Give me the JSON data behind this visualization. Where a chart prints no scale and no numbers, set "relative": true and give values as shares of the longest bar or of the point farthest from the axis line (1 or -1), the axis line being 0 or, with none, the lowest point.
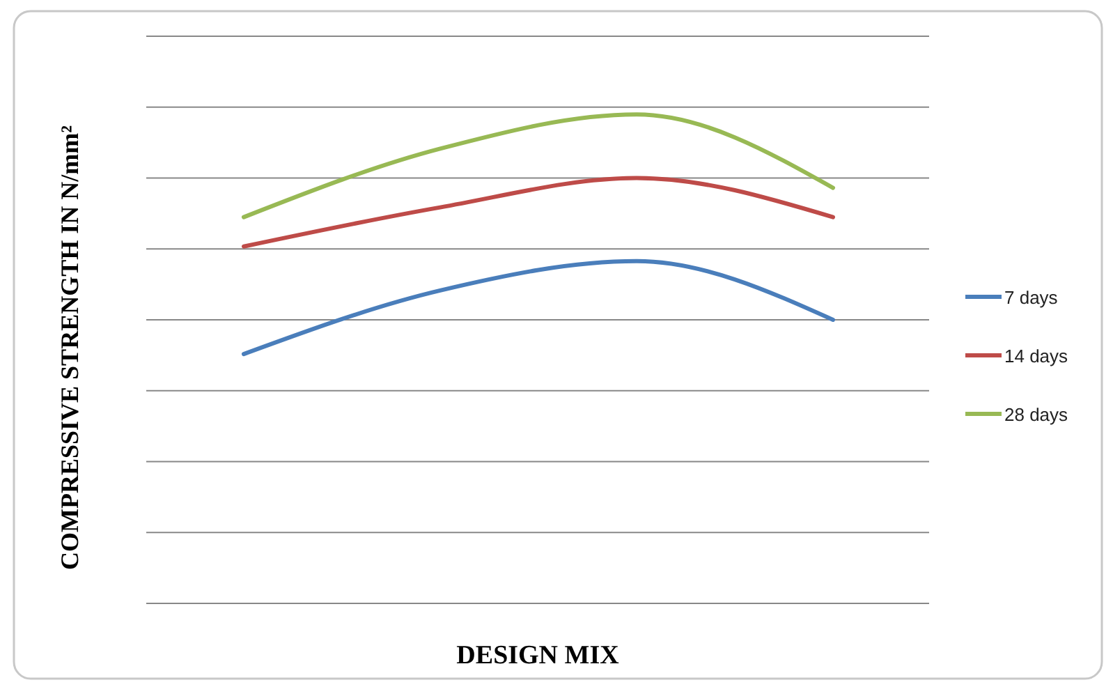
{
  "chart_data": {
    "type": "line",
    "xlabel": "DESIGN MIX",
    "ylabel": "COMPRESSIVE STRENGTH IN N/mm²",
    "categories": [
      null,
      null,
      null,
      null
    ],
    "relative": true,
    "grid": "y",
    "legend": "right",
    "marker": "none",
    "line_style": "solid",
    "series": [
      {
        "name": "7 days",
        "color": "#4a7ebb",
        "values": [
          0.51,
          0.64,
          0.7,
          0.58
        ]
      },
      {
        "name": "14 days",
        "color": "#be4b48",
        "values": [
          0.73,
          0.81,
          0.87,
          0.79
        ]
      },
      {
        "name": "28 days",
        "color": "#98b954",
        "values": [
          0.79,
          0.93,
          1,
          0.85
        ]
      }
    ]
  }
}
